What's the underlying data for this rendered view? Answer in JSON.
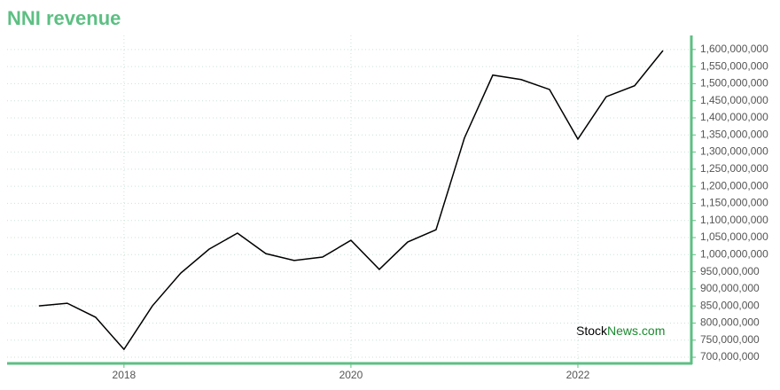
{
  "chart_data": {
    "type": "line",
    "title": "NNI revenue",
    "watermark": [
      "Stock",
      "News.com"
    ],
    "x": [
      2017.25,
      2017.5,
      2017.75,
      2018,
      2018.25,
      2018.5,
      2018.75,
      2019,
      2019.25,
      2019.5,
      2019.75,
      2020,
      2020.25,
      2020.5,
      2020.75,
      2021,
      2021.25,
      2021.5,
      2021.75,
      2022,
      2022.25,
      2022.5,
      2022.75
    ],
    "series": [
      {
        "name": "NNI revenue",
        "color": "#000000",
        "values": [
          850000000,
          858000000,
          817000000,
          723000000,
          850000000,
          946000000,
          1016000000,
          1063000000,
          1003000000,
          983000000,
          993000000,
          1042000000,
          957000000,
          1037000000,
          1073000000,
          1341000000,
          1525000000,
          1512000000,
          1483000000,
          1338000000,
          1462000000,
          1494000000,
          1597000000
        ]
      }
    ],
    "xlim": [
      2016.97,
      2023
    ],
    "xticks": [
      2018,
      2020,
      2022
    ],
    "ylim": [
      682000000,
      1641000000
    ],
    "yticks": [
      {
        "value": 700000000,
        "label": "700,000,000"
      },
      {
        "value": 750000000,
        "label": "750,000,000"
      },
      {
        "value": 800000000,
        "label": "800,000,000"
      },
      {
        "value": 850000000,
        "label": "850,000,000"
      },
      {
        "value": 900000000,
        "label": "900,000,000"
      },
      {
        "value": 950000000,
        "label": "950,000,000"
      },
      {
        "value": 1000000000,
        "label": "1,000,000,000"
      },
      {
        "value": 1050000000,
        "label": "1,050,000,000"
      },
      {
        "value": 1100000000,
        "label": "1,100,000,000"
      },
      {
        "value": 1150000000,
        "label": "1,150,000,000"
      },
      {
        "value": 1200000000,
        "label": "1,200,000,000"
      },
      {
        "value": 1250000000,
        "label": "1,250,000,000"
      },
      {
        "value": 1300000000,
        "label": "1,300,000,000"
      },
      {
        "value": 1350000000,
        "label": "1,350,000,000"
      },
      {
        "value": 1400000000,
        "label": "1,400,000,000"
      },
      {
        "value": 1450000000,
        "label": "1,450,000,000"
      },
      {
        "value": 1500000000,
        "label": "1,500,000,000"
      },
      {
        "value": 1550000000,
        "label": "1,550,000,000"
      },
      {
        "value": 1600000000,
        "label": "1,600,000,000"
      }
    ],
    "grid": true,
    "axis_color": "#5dbf83"
  }
}
